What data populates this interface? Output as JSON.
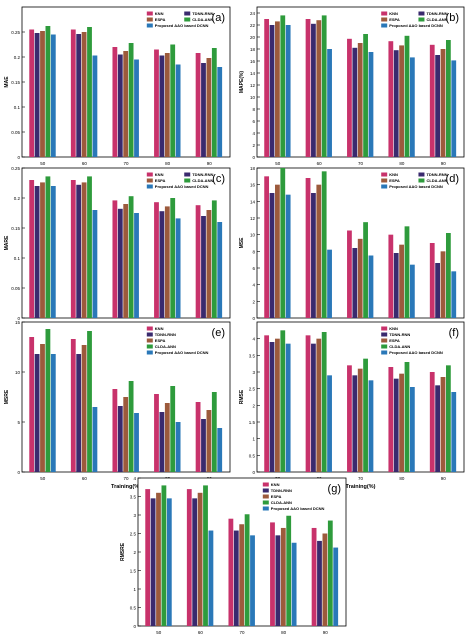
{
  "colors": {
    "KNN": "#c8326b",
    "TDNN-RNN": "#3a2a6e",
    "ESPA": "#9c5a3c",
    "CLDA-ANN": "#2e9b3c",
    "Proposed AAO based DCNN": "#2a78b8"
  },
  "chart_data": [
    {
      "panel": "(a)",
      "type": "bar",
      "xlabel": "Training(%)",
      "ylabel": "MAE",
      "categories": [
        "50",
        "60",
        "70",
        "80",
        "90"
      ],
      "ylim": [
        0,
        0.3
      ],
      "yticks": [
        "0",
        "0.05",
        "0.1",
        "0.15",
        "0.2",
        "0.25"
      ],
      "series": [
        {
          "name": "KNN",
          "values": [
            0.255,
            0.255,
            0.22,
            0.215,
            0.208
          ]
        },
        {
          "name": "TDNN-RNN",
          "values": [
            0.248,
            0.246,
            0.205,
            0.203,
            0.188
          ]
        },
        {
          "name": "ESPA",
          "values": [
            0.252,
            0.25,
            0.212,
            0.208,
            0.198
          ]
        },
        {
          "name": "CLDA-ANN",
          "values": [
            0.262,
            0.26,
            0.228,
            0.225,
            0.218
          ]
        },
        {
          "name": "Proposed AAO based DCNN",
          "values": [
            0.245,
            0.203,
            0.195,
            0.185,
            0.18
          ]
        }
      ]
    },
    {
      "panel": "(b)",
      "type": "bar",
      "xlabel": "Training(%)",
      "ylabel": "MAPE(%)",
      "categories": [
        "50",
        "60",
        "70",
        "80",
        "90"
      ],
      "ylim": [
        0,
        25
      ],
      "yticks": [
        "0",
        "2",
        "4",
        "6",
        "8",
        "10",
        "12",
        "14",
        "16",
        "18",
        "20",
        "22",
        "24"
      ],
      "series": [
        {
          "name": "KNN",
          "values": [
            23.0,
            23.0,
            19.7,
            19.3,
            18.7
          ]
        },
        {
          "name": "TDNN-RNN",
          "values": [
            22.0,
            22.2,
            18.2,
            17.8,
            17.0
          ]
        },
        {
          "name": "ESPA",
          "values": [
            22.6,
            22.8,
            19.0,
            18.6,
            18.0
          ]
        },
        {
          "name": "CLDA-ANN",
          "values": [
            23.6,
            23.6,
            20.5,
            20.2,
            19.5
          ]
        },
        {
          "name": "Proposed AAO based DCNN",
          "values": [
            22.0,
            18.0,
            17.5,
            16.6,
            16.1
          ]
        }
      ]
    },
    {
      "panel": "(c)",
      "type": "bar",
      "xlabel": "Training(%)",
      "ylabel": "MARE",
      "categories": [
        "50",
        "60",
        "70",
        "80",
        "90"
      ],
      "ylim": [
        0,
        0.25
      ],
      "yticks": [
        "0",
        "0.05",
        "0.1",
        "0.15",
        "0.2",
        "0.25"
      ],
      "series": [
        {
          "name": "KNN",
          "values": [
            0.23,
            0.23,
            0.196,
            0.193,
            0.188
          ]
        },
        {
          "name": "TDNN-RNN",
          "values": [
            0.22,
            0.222,
            0.182,
            0.178,
            0.17
          ]
        },
        {
          "name": "ESPA",
          "values": [
            0.226,
            0.226,
            0.19,
            0.186,
            0.18
          ]
        },
        {
          "name": "CLDA-ANN",
          "values": [
            0.236,
            0.236,
            0.203,
            0.2,
            0.196
          ]
        },
        {
          "name": "Proposed AAO based DCNN",
          "values": [
            0.22,
            0.18,
            0.175,
            0.166,
            0.16
          ]
        }
      ]
    },
    {
      "panel": "(d)",
      "type": "bar",
      "xlabel": "Training(%)",
      "ylabel": "MSE",
      "categories": [
        "50",
        "60",
        "70",
        "80",
        "90"
      ],
      "ylim": [
        0,
        18
      ],
      "yticks": [
        "0",
        "2",
        "4",
        "6",
        "8",
        "10",
        "12",
        "14",
        "16",
        "18"
      ],
      "series": [
        {
          "name": "KNN",
          "values": [
            17.0,
            16.8,
            10.5,
            10.0,
            9.0
          ]
        },
        {
          "name": "TDNN-RNN",
          "values": [
            15.0,
            15.0,
            8.4,
            7.8,
            6.6
          ]
        },
        {
          "name": "ESPA",
          "values": [
            16.0,
            16.0,
            9.5,
            8.8,
            8.0
          ]
        },
        {
          "name": "CLDA-ANN",
          "values": [
            18.0,
            17.6,
            11.5,
            11.0,
            10.2
          ]
        },
        {
          "name": "Proposed AAO based DCNN",
          "values": [
            14.8,
            8.2,
            7.5,
            6.4,
            5.6
          ]
        }
      ]
    },
    {
      "panel": "(e)",
      "type": "bar",
      "xlabel": "Training(%)",
      "ylabel": "MSRE",
      "categories": [
        "50",
        "60",
        "70",
        "80",
        "90"
      ],
      "ylim": [
        0,
        15
      ],
      "yticks": [
        "0",
        "5",
        "10",
        "15"
      ],
      "series": [
        {
          "name": "KNN",
          "values": [
            13.5,
            13.3,
            8.3,
            7.8,
            7.0
          ]
        },
        {
          "name": "TDNN-RNN",
          "values": [
            11.8,
            11.8,
            6.6,
            6.0,
            5.3
          ]
        },
        {
          "name": "ESPA",
          "values": [
            12.8,
            12.7,
            7.5,
            6.9,
            6.2
          ]
        },
        {
          "name": "CLDA-ANN",
          "values": [
            14.3,
            14.1,
            9.1,
            8.6,
            8.0
          ]
        },
        {
          "name": "Proposed AAO based DCNN",
          "values": [
            11.8,
            6.5,
            5.9,
            5.0,
            4.4
          ]
        }
      ]
    },
    {
      "panel": "(f)",
      "type": "bar",
      "xlabel": "Training(%)",
      "ylabel": "RMSE",
      "categories": [
        "50",
        "60",
        "70",
        "80",
        "90"
      ],
      "ylim": [
        0,
        4.5
      ],
      "yticks": [
        "0",
        "0.5",
        "1",
        "1.5",
        "2",
        "2.5",
        "3",
        "3.5",
        "4"
      ],
      "series": [
        {
          "name": "KNN",
          "values": [
            4.1,
            4.1,
            3.2,
            3.15,
            3.0
          ]
        },
        {
          "name": "TDNN-RNN",
          "values": [
            3.9,
            3.85,
            2.9,
            2.8,
            2.6
          ]
        },
        {
          "name": "ESPA",
          "values": [
            4.0,
            4.0,
            3.1,
            2.95,
            2.85
          ]
        },
        {
          "name": "CLDA-ANN",
          "values": [
            4.25,
            4.2,
            3.4,
            3.3,
            3.2
          ]
        },
        {
          "name": "Proposed AAO based DCNN",
          "values": [
            3.85,
            2.9,
            2.75,
            2.55,
            2.4
          ]
        }
      ]
    },
    {
      "panel": "(g)",
      "type": "bar",
      "xlabel": "Training(%)",
      "ylabel": "RMSRE",
      "categories": [
        "50",
        "60",
        "70",
        "80",
        "90"
      ],
      "ylim": [
        0,
        4
      ],
      "yticks": [
        "0",
        "0.5",
        "1",
        "1.5",
        "2",
        "2.5",
        "3",
        "3.5",
        "4"
      ],
      "series": [
        {
          "name": "KNN",
          "values": [
            3.7,
            3.7,
            2.9,
            2.8,
            2.65
          ]
        },
        {
          "name": "TDNN-RNN",
          "values": [
            3.45,
            3.45,
            2.58,
            2.45,
            2.3
          ]
        },
        {
          "name": "ESPA",
          "values": [
            3.6,
            3.6,
            2.75,
            2.65,
            2.5
          ]
        },
        {
          "name": "CLDA-ANN",
          "values": [
            3.8,
            3.8,
            3.02,
            2.98,
            2.85
          ]
        },
        {
          "name": "Proposed AAO based DCNN",
          "values": [
            3.45,
            2.58,
            2.45,
            2.25,
            2.12
          ]
        }
      ]
    }
  ]
}
